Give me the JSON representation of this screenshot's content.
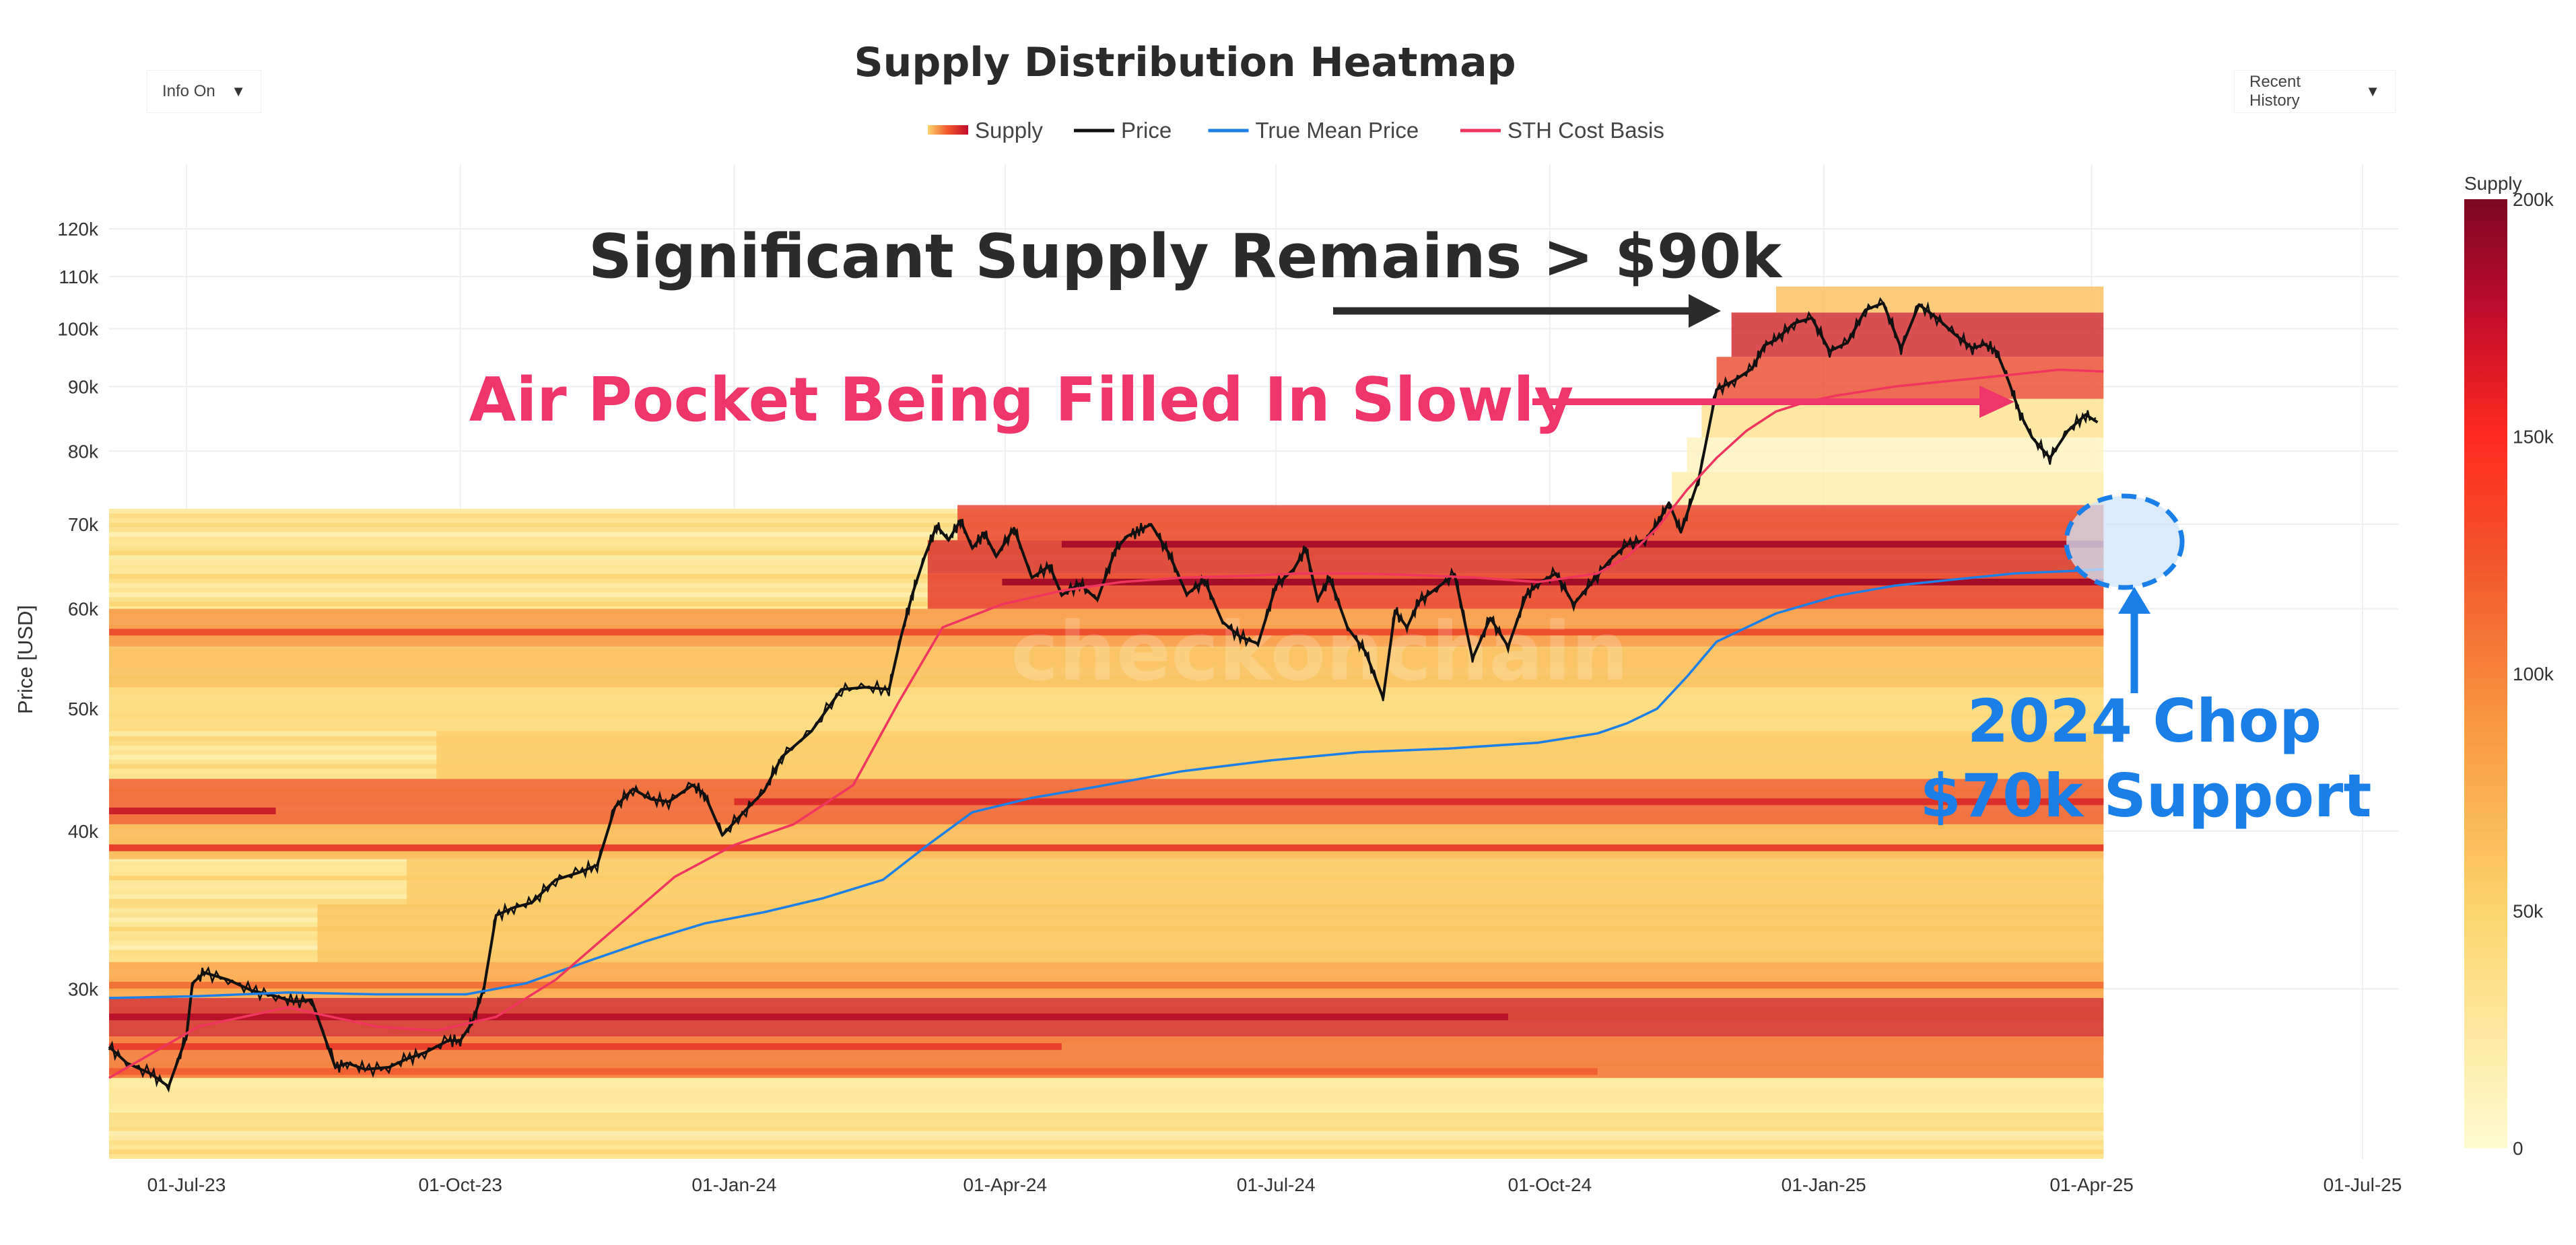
{
  "title": "Supply Distribution Heatmap",
  "controls": {
    "info_toggle": "Info On",
    "range_select": "Recent History"
  },
  "legend": [
    {
      "label": "Supply",
      "kind": "gradient"
    },
    {
      "label": "Price",
      "color": "#111111"
    },
    {
      "label": "True Mean Price",
      "color": "#1e7fe6"
    },
    {
      "label": "STH Cost Basis",
      "color": "#f0355f"
    }
  ],
  "colors": {
    "price": "#111111",
    "true_mean": "#1e7fe6",
    "sth": "#f0355f",
    "annot_dark": "#2b2b2b",
    "annot_pink": "#f0356b",
    "annot_blue": "#1a7fe8",
    "scale": [
      "#fff9cc",
      "#fde89a",
      "#fbcf6a",
      "#f9a24a",
      "#f26a35",
      "#e83a2a",
      "#b6102a",
      "#7a0a22"
    ]
  },
  "watermark": "checkonchain",
  "chart_data": {
    "type": "heatmap",
    "title": "Supply Distribution Heatmap",
    "xlabel": "",
    "ylabel": "Price [USD]",
    "y_scale": "log",
    "ylim": [
      22000,
      135000
    ],
    "xlim": [
      "2023-06-05",
      "2025-07-14"
    ],
    "x_ticks": [
      "01-Jul-23",
      "01-Oct-23",
      "01-Jan-24",
      "01-Apr-24",
      "01-Jul-24",
      "01-Oct-24",
      "01-Jan-25",
      "01-Apr-25",
      "01-Jul-25"
    ],
    "x_tick_days": [
      26,
      118,
      210,
      301,
      392,
      484,
      576,
      666,
      757
    ],
    "y_ticks": [
      {
        "value": 30000,
        "label": "30k"
      },
      {
        "value": 40000,
        "label": "40k"
      },
      {
        "value": 50000,
        "label": "50k"
      },
      {
        "value": 60000,
        "label": "60k"
      },
      {
        "value": 70000,
        "label": "70k"
      },
      {
        "value": 80000,
        "label": "80k"
      },
      {
        "value": 90000,
        "label": "90k"
      },
      {
        "value": 100000,
        "label": "100k"
      },
      {
        "value": 110000,
        "label": "110k"
      },
      {
        "value": 120000,
        "label": "120k"
      }
    ],
    "colorbar": {
      "title": "Supply",
      "range": [
        0,
        200000
      ],
      "ticks": [
        {
          "value": 0,
          "label": "0"
        },
        {
          "value": 50000,
          "label": "50k"
        },
        {
          "value": 100000,
          "label": "100k"
        },
        {
          "value": 150000,
          "label": "150k"
        },
        {
          "value": 200000,
          "label": "200k"
        }
      ]
    },
    "heat_end_day": 670,
    "heat_bands": [
      {
        "lo": 24000,
        "hi": 25500,
        "start": 0,
        "level": 0.12
      },
      {
        "lo": 25500,
        "hi": 27500,
        "start": 0,
        "level": 0.55
      },
      {
        "lo": 27500,
        "hi": 29500,
        "start": 0,
        "level": 0.78
      },
      {
        "lo": 29500,
        "hi": 31500,
        "start": 0,
        "level": 0.42
      },
      {
        "lo": 31500,
        "hi": 35000,
        "start": 70,
        "level": 0.32
      },
      {
        "lo": 35000,
        "hi": 38000,
        "start": 100,
        "level": 0.3
      },
      {
        "lo": 38000,
        "hi": 40500,
        "start": 0,
        "level": 0.36
      },
      {
        "lo": 40500,
        "hi": 44000,
        "start": 0,
        "level": 0.62
      },
      {
        "lo": 44000,
        "hi": 48000,
        "start": 110,
        "level": 0.3
      },
      {
        "lo": 48000,
        "hi": 52000,
        "start": 0,
        "level": 0.22
      },
      {
        "lo": 52000,
        "hi": 56000,
        "start": 0,
        "level": 0.34
      },
      {
        "lo": 56000,
        "hi": 60000,
        "start": 0,
        "level": 0.46
      },
      {
        "lo": 60000,
        "hi": 64000,
        "start": 275,
        "level": 0.72
      },
      {
        "lo": 64000,
        "hi": 68000,
        "start": 275,
        "level": 0.76
      },
      {
        "lo": 68000,
        "hi": 72500,
        "start": 285,
        "level": 0.7
      },
      {
        "lo": 72500,
        "hi": 77000,
        "start": 525,
        "level": 0.1
      },
      {
        "lo": 77000,
        "hi": 82000,
        "start": 530,
        "level": 0.04
      },
      {
        "lo": 82000,
        "hi": 88000,
        "start": 535,
        "level": 0.18
      },
      {
        "lo": 88000,
        "hi": 95000,
        "start": 540,
        "level": 0.66
      },
      {
        "lo": 95000,
        "hi": 103000,
        "start": 545,
        "level": 0.78
      },
      {
        "lo": 103000,
        "hi": 108000,
        "start": 560,
        "level": 0.34
      }
    ],
    "heat_lines": [
      {
        "price": 28500,
        "start": 0,
        "end": 470,
        "level": 0.85
      },
      {
        "price": 27000,
        "start": 0,
        "end": 320,
        "level": 0.7
      },
      {
        "price": 25800,
        "start": 0,
        "end": 500,
        "level": 0.6
      },
      {
        "price": 30200,
        "start": 0,
        "end": 670,
        "level": 0.55
      },
      {
        "price": 41500,
        "start": 0,
        "end": 56,
        "level": 0.8
      },
      {
        "price": 42200,
        "start": 210,
        "end": 670,
        "level": 0.75
      },
      {
        "price": 38800,
        "start": 0,
        "end": 670,
        "level": 0.7
      },
      {
        "price": 57500,
        "start": 0,
        "end": 670,
        "level": 0.65
      },
      {
        "price": 63000,
        "start": 300,
        "end": 670,
        "level": 0.9
      },
      {
        "price": 67500,
        "start": 320,
        "end": 670,
        "level": 0.88
      }
    ],
    "series": [
      {
        "name": "Price",
        "color": "#111111",
        "days": [
          0,
          6,
          14,
          20,
          26,
          28,
          32,
          40,
          48,
          56,
          62,
          68,
          76,
          80,
          86,
          94,
          100,
          106,
          114,
          118,
          122,
          126,
          130,
          136,
          142,
          150,
          158,
          164,
          170,
          176,
          182,
          188,
          196,
          200,
          206,
          214,
          220,
          226,
          236,
          246,
          254,
          262,
          266,
          270,
          274,
          278,
          282,
          286,
          290,
          294,
          298,
          304,
          310,
          316,
          320,
          326,
          332,
          338,
          342,
          346,
          350,
          356,
          362,
          368,
          374,
          380,
          386,
          392,
          398,
          402,
          406,
          410,
          416,
          422,
          428,
          432,
          436,
          440,
          446,
          452,
          458,
          464,
          470,
          476,
          480,
          486,
          492,
          498,
          504,
          510,
          516,
          520,
          524,
          528,
          534,
          540,
          546,
          552,
          556,
          560,
          566,
          572,
          578,
          584,
          590,
          596,
          602,
          608,
          614,
          620,
          626,
          630,
          634,
          638,
          642,
          646,
          652,
          658,
          664,
          668
        ],
        "values": [
          27000,
          26200,
          25700,
          25100,
          27500,
          30300,
          30900,
          30500,
          29900,
          29600,
          29300,
          29400,
          26000,
          26200,
          25900,
          26000,
          26400,
          26700,
          27300,
          27300,
          28200,
          30100,
          34300,
          34800,
          35100,
          36600,
          37100,
          37600,
          41800,
          43200,
          42400,
          42200,
          43500,
          42800,
          39700,
          41600,
          43000,
          45800,
          48000,
          51800,
          52000,
          51800,
          57000,
          61800,
          66000,
          69800,
          68000,
          70500,
          67000,
          68900,
          66000,
          69500,
          63500,
          64900,
          61500,
          62800,
          61000,
          66800,
          68500,
          69200,
          70000,
          66400,
          61600,
          63200,
          58600,
          57000,
          56300,
          62600,
          64500,
          67000,
          61000,
          63500,
          58000,
          55500,
          51000,
          59800,
          58000,
          60800,
          62300,
          63900,
          54800,
          59000,
          56000,
          61500,
          62800,
          64000,
          60500,
          62900,
          65500,
          67500,
          68000,
          70000,
          72800,
          69000,
          76000,
          89500,
          91000,
          93000,
          97000,
          98000,
          101000,
          102000,
          96000,
          97500,
          103500,
          104800,
          96500,
          104500,
          102000,
          99000,
          96500,
          97200,
          96000,
          91000,
          85600,
          82000,
          79000,
          83000,
          85500,
          84300
        ]
      },
      {
        "name": "True Mean Price",
        "color": "#1e7fe6",
        "days": [
          0,
          30,
          60,
          90,
          120,
          140,
          160,
          180,
          200,
          220,
          240,
          260,
          275,
          290,
          310,
          330,
          360,
          390,
          420,
          450,
          480,
          500,
          510,
          520,
          530,
          540,
          560,
          580,
          600,
          620,
          640,
          660,
          670
        ],
        "values": [
          29500,
          29600,
          29800,
          29700,
          29700,
          30300,
          31500,
          32700,
          33800,
          34500,
          35400,
          36600,
          39000,
          41400,
          42500,
          43300,
          44600,
          45500,
          46200,
          46500,
          47000,
          47800,
          48700,
          50000,
          53000,
          56500,
          59500,
          61400,
          62600,
          63300,
          64000,
          64300,
          64500
        ]
      },
      {
        "name": "STH Cost Basis",
        "color": "#f0355f",
        "days": [
          0,
          30,
          60,
          90,
          110,
          130,
          150,
          170,
          190,
          210,
          230,
          250,
          265,
          280,
          300,
          320,
          340,
          360,
          380,
          400,
          420,
          440,
          460,
          480,
          500,
          510,
          520,
          530,
          540,
          550,
          560,
          570,
          580,
          600,
          620,
          640,
          655,
          670
        ],
        "values": [
          25500,
          28000,
          29000,
          28000,
          27800,
          28500,
          30500,
          33500,
          36800,
          39000,
          40500,
          43500,
          50500,
          58000,
          60500,
          62000,
          63000,
          63500,
          63700,
          64000,
          64000,
          63800,
          63500,
          63000,
          64000,
          66000,
          69500,
          74500,
          79000,
          83000,
          86000,
          87500,
          88500,
          90000,
          91000,
          92000,
          92800,
          92500
        ]
      }
    ],
    "annotations": [
      {
        "text": "Significant Supply Remains > $90k",
        "color": "dark"
      },
      {
        "text": "Air Pocket Being Filled In Slowly",
        "color": "pink"
      },
      {
        "text": "2024 Chop",
        "color": "blue"
      },
      {
        "text": "$70k Support",
        "color": "blue"
      }
    ]
  }
}
